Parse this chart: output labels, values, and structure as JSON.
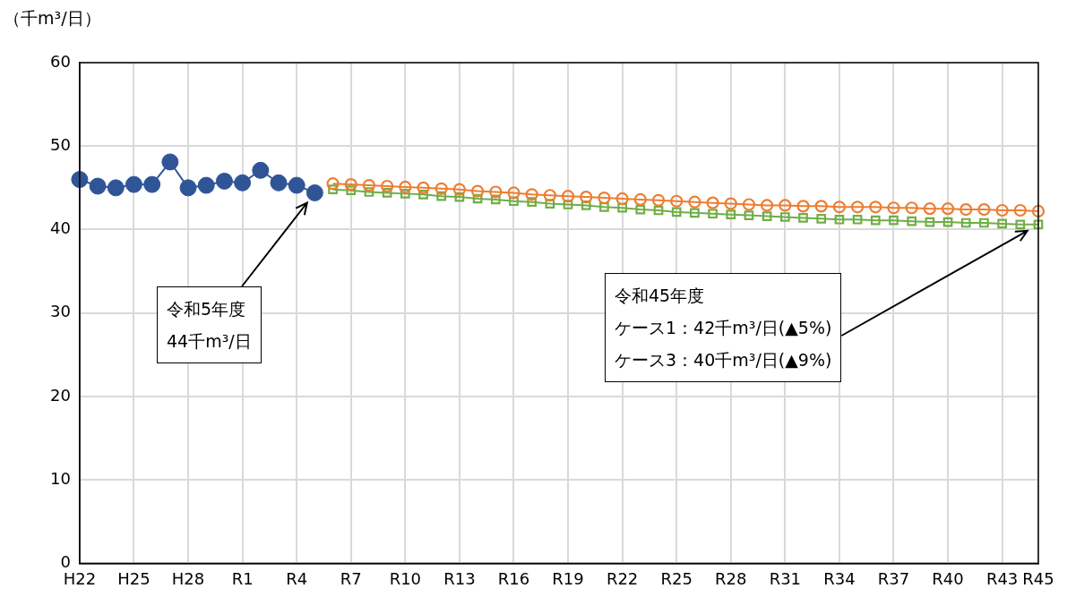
{
  "chart_data": {
    "type": "line",
    "ylabel": "（千m³/日）",
    "categories": [
      "H22",
      null,
      null,
      "H25",
      null,
      null,
      "H28",
      null,
      null,
      "R1",
      null,
      null,
      "R4",
      null,
      null,
      "R7",
      null,
      null,
      "R10",
      null,
      null,
      "R13",
      null,
      null,
      "R16",
      null,
      null,
      "R19",
      null,
      null,
      "R22",
      null,
      null,
      "R25",
      null,
      null,
      "R28",
      null,
      null,
      "R31",
      null,
      null,
      "R34",
      null,
      null,
      "R37",
      null,
      null,
      "R40",
      null,
      null,
      "R43",
      null,
      "R45"
    ],
    "series": [
      {
        "color": "#2f5597",
        "marker": "circle",
        "values": [
          46.0,
          45.2,
          45.0,
          45.4,
          45.4,
          48.1,
          45.0,
          45.3,
          45.8,
          45.6,
          47.1,
          45.6,
          45.3,
          44.4,
          null,
          null,
          null,
          null,
          null,
          null,
          null,
          null,
          null,
          null,
          null,
          null,
          null,
          null,
          null,
          null,
          null,
          null,
          null,
          null,
          null,
          null,
          null,
          null,
          null,
          null,
          null,
          null,
          null,
          null,
          null,
          null,
          null,
          null,
          null,
          null,
          null,
          null,
          null,
          null
        ]
      },
      {
        "color": "#ed7d31",
        "marker": "circle",
        "values": [
          null,
          null,
          null,
          null,
          null,
          null,
          null,
          null,
          null,
          null,
          null,
          null,
          null,
          null,
          45.5,
          45.4,
          45.3,
          45.2,
          45.1,
          45.0,
          44.9,
          44.8,
          44.6,
          44.5,
          44.4,
          44.2,
          44.1,
          44.0,
          43.9,
          43.8,
          43.7,
          43.6,
          43.5,
          43.4,
          43.3,
          43.2,
          43.1,
          43.0,
          42.9,
          42.9,
          42.8,
          42.8,
          42.7,
          42.7,
          42.7,
          42.6,
          42.6,
          42.5,
          42.5,
          42.4,
          42.4,
          42.3,
          42.3,
          42.2
        ]
      },
      {
        "color": "#70ad47",
        "marker": "square",
        "values": [
          null,
          null,
          null,
          null,
          null,
          null,
          null,
          null,
          null,
          null,
          null,
          null,
          null,
          null,
          44.8,
          44.7,
          44.5,
          44.4,
          44.3,
          44.2,
          44.0,
          43.9,
          43.7,
          43.6,
          43.4,
          43.3,
          43.1,
          43.0,
          42.9,
          42.7,
          42.6,
          42.4,
          42.3,
          42.1,
          42.0,
          41.9,
          41.8,
          41.7,
          41.6,
          41.5,
          41.4,
          41.3,
          41.2,
          41.2,
          41.1,
          41.1,
          41.0,
          40.9,
          40.9,
          40.8,
          40.8,
          40.7,
          40.6,
          40.6
        ]
      }
    ],
    "ylim": [
      0,
      60
    ],
    "yticks": [
      0,
      10,
      20,
      30,
      40,
      50,
      60
    ],
    "grid": true,
    "annotations": [
      "令和5年度",
      "44千m³/日",
      "令和45年度",
      "ケース1：42千m³/日(▲5%)",
      "ケース3：40千m³/日(▲9%)"
    ]
  }
}
